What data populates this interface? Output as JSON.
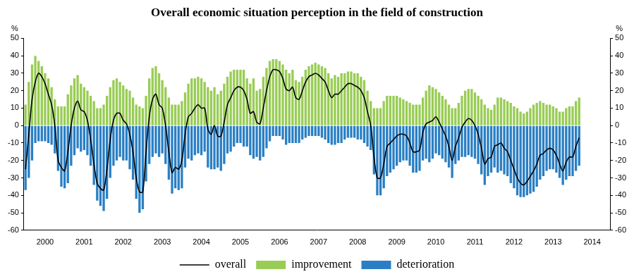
{
  "chart_data": {
    "type": "bar",
    "title": "Overall economic situation perception in the field of construction",
    "y_label": "%",
    "categories": [
      null,
      null,
      null,
      null,
      null,
      null,
      "2000",
      null,
      null,
      null,
      null,
      null,
      null,
      null,
      null,
      null,
      null,
      null,
      "2001",
      null,
      null,
      null,
      null,
      null,
      null,
      null,
      null,
      null,
      null,
      null,
      "2002",
      null,
      null,
      null,
      null,
      null,
      null,
      null,
      null,
      null,
      null,
      null,
      "2003",
      null,
      null,
      null,
      null,
      null,
      null,
      null,
      null,
      null,
      null,
      null,
      "2004",
      null,
      null,
      null,
      null,
      null,
      null,
      null,
      null,
      null,
      null,
      null,
      "2005",
      null,
      null,
      null,
      null,
      null,
      null,
      null,
      null,
      null,
      null,
      null,
      "2006",
      null,
      null,
      null,
      null,
      null,
      null,
      null,
      null,
      null,
      null,
      null,
      "2007",
      null,
      null,
      null,
      null,
      null,
      null,
      null,
      null,
      null,
      null,
      null,
      "2008",
      null,
      null,
      null,
      null,
      null,
      null,
      null,
      null,
      null,
      null,
      null,
      "2009",
      null,
      null,
      null,
      null,
      null,
      null,
      null,
      null,
      null,
      null,
      null,
      "2010",
      null,
      null,
      null,
      null,
      null,
      null,
      null,
      null,
      null,
      null,
      null,
      "2011",
      null,
      null,
      null,
      null,
      null,
      null,
      null,
      null,
      null,
      null,
      null,
      "2012",
      null,
      null,
      null,
      null,
      null,
      null,
      null,
      null,
      null,
      null,
      null,
      "2013",
      null,
      null,
      null,
      null,
      null,
      null,
      null,
      null,
      null,
      null,
      null,
      "2014",
      null,
      null,
      null,
      null,
      null
    ],
    "series": [
      {
        "name": "improvement",
        "type": "bar",
        "color": "#99cc55",
        "values": [
          12,
          25,
          35,
          40,
          37,
          34,
          30,
          27,
          22,
          15,
          11,
          11,
          11,
          18,
          23,
          27,
          29,
          24,
          22,
          20,
          17,
          14,
          10,
          10,
          12,
          17,
          22,
          26,
          27,
          25,
          23,
          21,
          20,
          16,
          12,
          11,
          10,
          17,
          27,
          33,
          34,
          30,
          26,
          22,
          16,
          12,
          12,
          12,
          14,
          19,
          24,
          27,
          27,
          28,
          27,
          25,
          22,
          20,
          22,
          18,
          20,
          24,
          28,
          31,
          32,
          32,
          32,
          32,
          27,
          24,
          27,
          20,
          21,
          28,
          33,
          37,
          38,
          38,
          37,
          35,
          32,
          30,
          32,
          26,
          25,
          28,
          32,
          34,
          35,
          36,
          35,
          34,
          33,
          30,
          27,
          29,
          28,
          30,
          30,
          31,
          31,
          30,
          30,
          28,
          26,
          20,
          14,
          10,
          10,
          10,
          14,
          17,
          17,
          17,
          17,
          16,
          15,
          14,
          13,
          12,
          12,
          12,
          16,
          20,
          23,
          22,
          21,
          19,
          17,
          15,
          12,
          10,
          10,
          13,
          17,
          20,
          21,
          21,
          19,
          17,
          15,
          12,
          10,
          9,
          12,
          16,
          16,
          15,
          14,
          13,
          11,
          10,
          8,
          7,
          8,
          10,
          12,
          13,
          14,
          13,
          12,
          12,
          11,
          10,
          8,
          8,
          10,
          11,
          11,
          14,
          16,
          null,
          null,
          null,
          null,
          null,
          null,
          null,
          null,
          null
        ]
      },
      {
        "name": "deterioration",
        "type": "bar",
        "color": "#2a7fc4",
        "values": [
          -37,
          -30,
          -20,
          -10,
          -9,
          -9,
          -9,
          -10,
          -11,
          -16,
          -26,
          -35,
          -36,
          -33,
          -23,
          -17,
          -13,
          -15,
          -14,
          -17,
          -23,
          -34,
          -43,
          -46,
          -49,
          -42,
          -30,
          -23,
          -20,
          -18,
          -20,
          -20,
          -25,
          -31,
          -42,
          -50,
          -48,
          -32,
          -22,
          -18,
          -16,
          -18,
          -16,
          -22,
          -31,
          -39,
          -36,
          -37,
          -36,
          -24,
          -19,
          -20,
          -17,
          -16,
          -17,
          -15,
          -24,
          -25,
          -25,
          -24,
          -26,
          -22,
          -16,
          -15,
          -12,
          -10,
          -10,
          -12,
          -12,
          -17,
          -19,
          -18,
          -20,
          -18,
          -13,
          -9,
          -6,
          -6,
          -6,
          -8,
          -11,
          -10,
          -10,
          -10,
          -10,
          -8,
          -7,
          -6,
          -6,
          -6,
          -6,
          -7,
          -8,
          -10,
          -11,
          -11,
          -10,
          -10,
          -8,
          -7,
          -7,
          -7,
          -8,
          -8,
          -10,
          -12,
          -14,
          -28,
          -40,
          -40,
          -36,
          -29,
          -27,
          -25,
          -23,
          -21,
          -20,
          -20,
          -23,
          -27,
          -27,
          -26,
          -20,
          -19,
          -21,
          -19,
          -16,
          -17,
          -19,
          -21,
          -24,
          -30,
          -22,
          -20,
          -18,
          -18,
          -17,
          -18,
          -19,
          -22,
          -28,
          -34,
          -29,
          -27,
          -24,
          -27,
          -26,
          -28,
          -29,
          -33,
          -36,
          -40,
          -41,
          -41,
          -40,
          -39,
          -38,
          -35,
          -31,
          -29,
          -26,
          -25,
          -25,
          -27,
          -30,
          -34,
          -31,
          -29,
          -29,
          -26,
          -23,
          null,
          null,
          null,
          null,
          null,
          null,
          null,
          null,
          null
        ]
      },
      {
        "name": "overall",
        "type": "line",
        "color": "#000000",
        "values": [
          -25,
          -5,
          15,
          25,
          30,
          28,
          24,
          18,
          12,
          0,
          -20,
          -24,
          -26,
          -15,
          0,
          10,
          14,
          9,
          8,
          3,
          -8,
          -22,
          -33,
          -36,
          -37,
          -25,
          -8,
          3,
          7,
          7,
          3,
          1,
          -5,
          -15,
          -30,
          -38,
          -38,
          -15,
          5,
          15,
          18,
          12,
          10,
          0,
          -15,
          -27,
          -24,
          -25,
          -20,
          -5,
          5,
          7,
          10,
          12,
          10,
          10,
          -2,
          -5,
          0,
          -6,
          -6,
          2,
          12,
          16,
          20,
          22,
          22,
          20,
          15,
          7,
          8,
          2,
          1,
          10,
          20,
          28,
          32,
          32,
          31,
          27,
          21,
          20,
          22,
          16,
          15,
          20,
          25,
          28,
          29,
          30,
          29,
          27,
          25,
          20,
          16,
          18,
          18,
          20,
          22,
          24,
          24,
          23,
          22,
          20,
          16,
          8,
          0,
          -18,
          -30,
          -30,
          -22,
          -12,
          -10,
          -8,
          -6,
          -5,
          -5,
          -6,
          -10,
          -15,
          -15,
          -14,
          -4,
          1,
          2,
          3,
          5,
          2,
          -2,
          -6,
          -12,
          -20,
          -12,
          -7,
          -1,
          2,
          4,
          3,
          0,
          -5,
          -13,
          -22,
          -19,
          -18,
          -12,
          -11,
          -10,
          -13,
          -15,
          -20,
          -25,
          -30,
          -33,
          -34,
          -32,
          -29,
          -26,
          -22,
          -17,
          -16,
          -14,
          -13,
          -14,
          -17,
          -22,
          -26,
          -21,
          -18,
          -18,
          -12,
          -7,
          null,
          null,
          null,
          null,
          null,
          null,
          null,
          null,
          null
        ]
      }
    ],
    "ylim": [
      -60,
      50
    ],
    "yticks": [
      -60,
      -50,
      -40,
      -30,
      -20,
      -10,
      0,
      10,
      20,
      30,
      40,
      50
    ],
    "y2lim": [
      -60,
      50
    ],
    "y2ticks": [
      -60,
      -50,
      -40,
      -30,
      -20,
      -10,
      0,
      10,
      20,
      30,
      40,
      50
    ],
    "grid": false,
    "legend": "bottom"
  }
}
